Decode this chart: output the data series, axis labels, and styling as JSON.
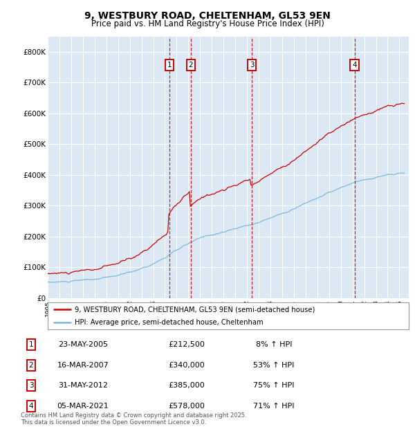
{
  "title": "9, WESTBURY ROAD, CHELTENHAM, GL53 9EN",
  "subtitle": "Price paid vs. HM Land Registry's House Price Index (HPI)",
  "background_color": "#dce9f5",
  "ylim": [
    0,
    850000
  ],
  "yticks": [
    0,
    100000,
    200000,
    300000,
    400000,
    500000,
    600000,
    700000,
    800000
  ],
  "ytick_labels": [
    "£0",
    "£100K",
    "£200K",
    "£300K",
    "£400K",
    "£500K",
    "£600K",
    "£700K",
    "£800K"
  ],
  "xlim_start": 1995.0,
  "xlim_end": 2025.8,
  "hpi_color": "#7ab8d9",
  "price_color": "#cc0000",
  "sale_dates": [
    2005.38,
    2007.21,
    2012.41,
    2021.17
  ],
  "sale_labels": [
    "1",
    "2",
    "3",
    "4"
  ],
  "sale_prices": [
    212500,
    340000,
    385000,
    578000
  ],
  "legend_line1": "9, WESTBURY ROAD, CHELTENHAM, GL53 9EN (semi-detached house)",
  "legend_line2": "HPI: Average price, semi-detached house, Cheltenham",
  "table_entries": [
    [
      "1",
      "23-MAY-2005",
      "£212,500",
      "8% ↑ HPI"
    ],
    [
      "2",
      "16-MAR-2007",
      "£340,000",
      "53% ↑ HPI"
    ],
    [
      "3",
      "31-MAY-2012",
      "£385,000",
      "75% ↑ HPI"
    ],
    [
      "4",
      "05-MAR-2021",
      "£578,000",
      "71% ↑ HPI"
    ]
  ],
  "footer": "Contains HM Land Registry data © Crown copyright and database right 2025.\nThis data is licensed under the Open Government Licence v3.0."
}
